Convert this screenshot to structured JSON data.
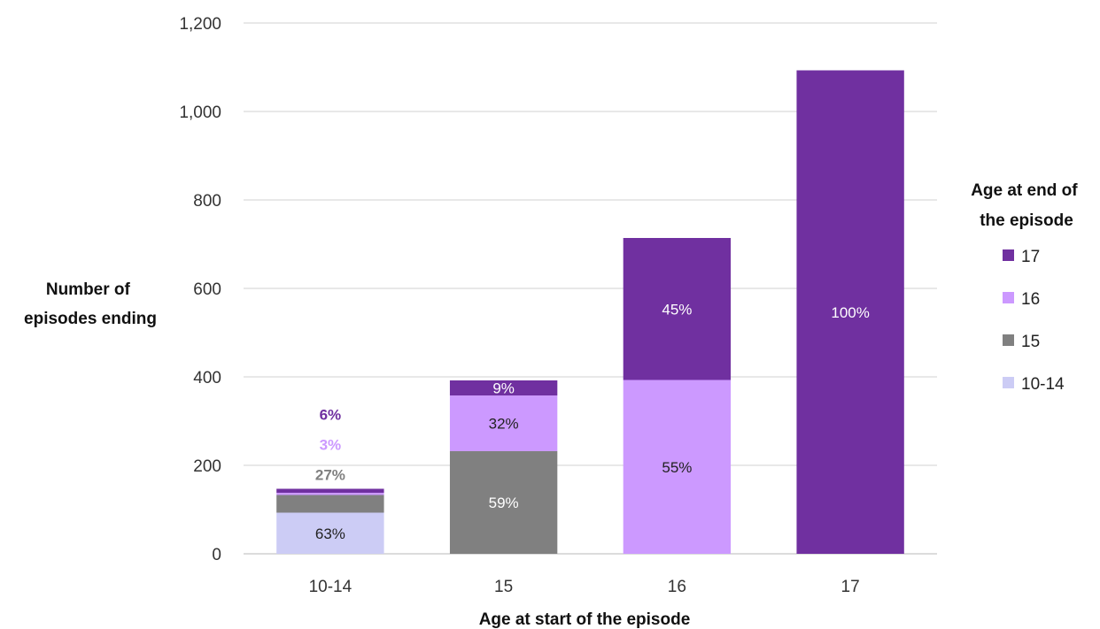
{
  "chart_data": {
    "type": "bar",
    "stacked": true,
    "title": "",
    "xlabel": "Age at start of the episode",
    "ylabel_lines": [
      "Number of",
      "episodes ending"
    ],
    "ylim": [
      0,
      1200
    ],
    "yticks": [
      0,
      200,
      400,
      600,
      800,
      1000,
      1200
    ],
    "ytick_labels": [
      "0",
      "200",
      "400",
      "600",
      "800",
      "1,000",
      "1,200"
    ],
    "categories": [
      "10-14",
      "15",
      "16",
      "17"
    ],
    "grid": true,
    "legend": {
      "position": "right",
      "title_lines": [
        "Age at end of",
        "the episode"
      ],
      "order": [
        "17",
        "16",
        "15",
        "10-14"
      ]
    },
    "series": [
      {
        "name": "10-14",
        "color": "#ccccf5",
        "values": [
          93,
          0,
          0,
          0
        ],
        "labels": [
          "63%",
          "",
          "",
          ""
        ]
      },
      {
        "name": "15",
        "color": "#808080",
        "values": [
          40,
          232,
          0,
          0
        ],
        "labels": [
          "27%",
          "59%",
          "",
          ""
        ]
      },
      {
        "name": "16",
        "color": "#cc99ff",
        "values": [
          5,
          126,
          393,
          0
        ],
        "labels": [
          "3%",
          "32%",
          "55%",
          ""
        ]
      },
      {
        "name": "17",
        "color": "#7030a0",
        "values": [
          9,
          34,
          321,
          1093
        ],
        "labels": [
          "6%",
          "9%",
          "45%",
          "100%"
        ]
      }
    ]
  }
}
